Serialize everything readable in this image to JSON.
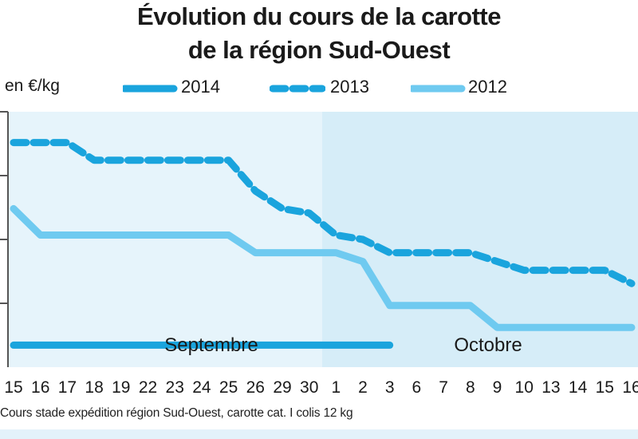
{
  "title": {
    "line1": "Évolution du cours de la carotte",
    "line2": "de la région Sud-Ouest"
  },
  "unit_label": "en €/kg",
  "caption": "Cours stade expédition région Sud-Ouest, carotte cat. I colis 12 kg",
  "colors": {
    "background_september": "#e6f4fb",
    "background_october": "#d6edf8",
    "series_2014": "#1aa4dd",
    "series_2013": "#1aa4dd",
    "series_2012": "#6fcaf0",
    "axis": "#555555",
    "text": "#1a1a1a"
  },
  "chart_data": {
    "type": "line",
    "ylabel": "en €/kg",
    "months": [
      "Septembre",
      "Octobre"
    ],
    "x_ticks": [
      "15",
      "16",
      "17",
      "18",
      "19",
      "22",
      "23",
      "24",
      "25",
      "26",
      "29",
      "30",
      "1",
      "2",
      "3",
      "6",
      "7",
      "8",
      "9",
      "10",
      "13",
      "14",
      "15",
      "16"
    ],
    "series": [
      {
        "name": "2014",
        "style": "solid",
        "values": [
          0.25,
          0.25,
          0.25,
          0.25,
          0.25,
          0.25,
          0.25,
          0.25,
          0.25,
          0.25,
          0.25,
          0.25,
          0.25,
          0.25,
          0.25,
          null,
          null,
          null,
          null,
          null,
          null,
          null,
          null,
          null
        ]
      },
      {
        "name": "2013",
        "style": "dashed",
        "values": [
          2.55,
          2.55,
          2.55,
          2.35,
          2.35,
          2.35,
          2.35,
          2.35,
          2.35,
          2.0,
          1.8,
          1.75,
          1.5,
          1.45,
          1.3,
          1.3,
          1.3,
          1.3,
          1.2,
          1.1,
          1.1,
          1.1,
          1.1,
          0.95
        ]
      },
      {
        "name": "2012",
        "style": "solid",
        "values": [
          1.8,
          1.5,
          1.5,
          1.5,
          1.5,
          1.5,
          1.5,
          1.5,
          1.5,
          1.3,
          1.3,
          1.3,
          1.3,
          1.2,
          0.7,
          0.7,
          0.7,
          0.7,
          0.45,
          0.45,
          0.45,
          0.45,
          0.45,
          0.45
        ]
      }
    ]
  }
}
